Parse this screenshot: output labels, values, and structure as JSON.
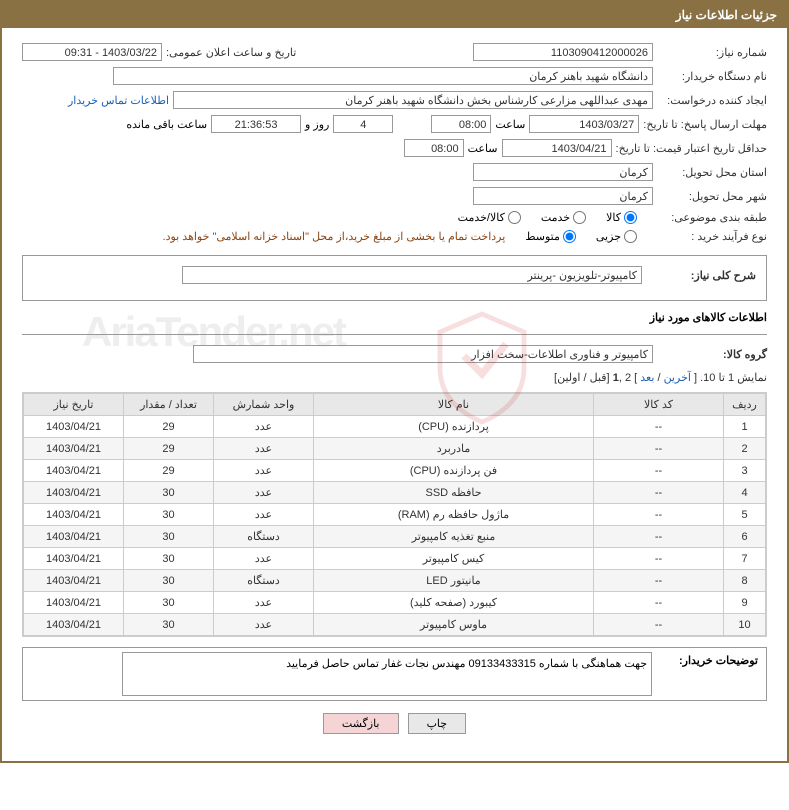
{
  "header": {
    "title": "جزئیات اطلاعات نیاز"
  },
  "form": {
    "needNumber": {
      "label": "شماره نیاز:",
      "value": "1103090412000026"
    },
    "announceDate": {
      "label": "تاریخ و ساعت اعلان عمومی:",
      "value": "1403/03/22 - 09:31"
    },
    "buyerOrg": {
      "label": "نام دستگاه خریدار:",
      "value": "دانشگاه شهید باهنر کرمان"
    },
    "requester": {
      "label": "ایجاد کننده درخواست:",
      "value": "مهدی عبداللهی مزارعی کارشناس بخش  دانشگاه شهید باهنر کرمان",
      "contactLink": "اطلاعات تماس خریدار"
    },
    "deadline": {
      "label": "مهلت ارسال پاسخ: تا تاریخ:",
      "date": "1403/03/27",
      "timeLabel": "ساعت",
      "time": "08:00",
      "daysCount": "4",
      "daysLabel": "روز و",
      "countdown": "21:36:53",
      "remainLabel": "ساعت باقی مانده"
    },
    "minValidity": {
      "label": "حداقل تاریخ اعتبار قیمت: تا تاریخ:",
      "date": "1403/04/21",
      "timeLabel": "ساعت",
      "time": "08:00"
    },
    "deliveryProvince": {
      "label": "استان محل تحویل:",
      "value": "کرمان"
    },
    "deliveryCity": {
      "label": "شهر محل تحویل:",
      "value": "کرمان"
    },
    "category": {
      "label": "طبقه بندی موضوعی:",
      "options": [
        "کالا",
        "خدمت",
        "کالا/خدمت"
      ],
      "selected": 0
    },
    "purchaseType": {
      "label": "نوع فرآیند خرید :",
      "options": [
        "جزیی",
        "متوسط"
      ],
      "selected": 1,
      "note": "پرداخت تمام یا بخشی از مبلغ خرید،از محل \"اسناد خزانه اسلامی\" خواهد بود."
    }
  },
  "needDesc": {
    "label": "شرح کلی نیاز:",
    "value": "کامپیوتر-تلویزیون -پرینتر"
  },
  "goodsInfo": {
    "title": "اطلاعات کالاهای مورد نیاز",
    "group": {
      "label": "گروه کالا:",
      "value": "کامپیوتر و فناوری اطلاعات-سخت افزار"
    }
  },
  "pager": {
    "prefix": "نمایش 1 تا 10. [ ",
    "last": "آخرین",
    "sep1": " / ",
    "next": "بعد",
    "mid": " ] 2 ,",
    "cur": "1",
    "sep2": " [قبل / اولین]"
  },
  "table": {
    "columns": [
      "ردیف",
      "کد کالا",
      "نام کالا",
      "واحد شمارش",
      "تعداد / مقدار",
      "تاریخ نیاز"
    ],
    "rows": [
      [
        "1",
        "--",
        "پردازنده (CPU)",
        "عدد",
        "29",
        "1403/04/21"
      ],
      [
        "2",
        "--",
        "مادربرد",
        "عدد",
        "29",
        "1403/04/21"
      ],
      [
        "3",
        "--",
        "فن پردازنده (CPU)",
        "عدد",
        "29",
        "1403/04/21"
      ],
      [
        "4",
        "--",
        "حافظه SSD",
        "عدد",
        "30",
        "1403/04/21"
      ],
      [
        "5",
        "--",
        "ماژول حافظه رم (RAM)",
        "عدد",
        "30",
        "1403/04/21"
      ],
      [
        "6",
        "--",
        "منبع تغذیه کامپیوتر",
        "دستگاه",
        "30",
        "1403/04/21"
      ],
      [
        "7",
        "--",
        "کیس کامپیوتر",
        "عدد",
        "30",
        "1403/04/21"
      ],
      [
        "8",
        "--",
        "مانیتور LED",
        "دستگاه",
        "30",
        "1403/04/21"
      ],
      [
        "9",
        "--",
        "کیبورد (صفحه کلید)",
        "عدد",
        "30",
        "1403/04/21"
      ],
      [
        "10",
        "--",
        "ماوس کامپیوتر",
        "عدد",
        "30",
        "1403/04/21"
      ]
    ]
  },
  "buyerNotes": {
    "label": "توضیحات خریدار:",
    "value": "جهت هماهنگی با شماره 09133433315 مهندس نجات غفار تماس حاصل فرمایید"
  },
  "buttons": {
    "print": "چاپ",
    "back": "بازگشت"
  },
  "colors": {
    "headerBg": "#8a7143",
    "headerText": "#ffffff",
    "border": "#999999",
    "link": "#1a5eb8",
    "noteText": "#8b4513",
    "tableHeader": "#e8e8e8",
    "tableAlt": "#f5f5f5",
    "backBtn": "#f4d4d4"
  }
}
